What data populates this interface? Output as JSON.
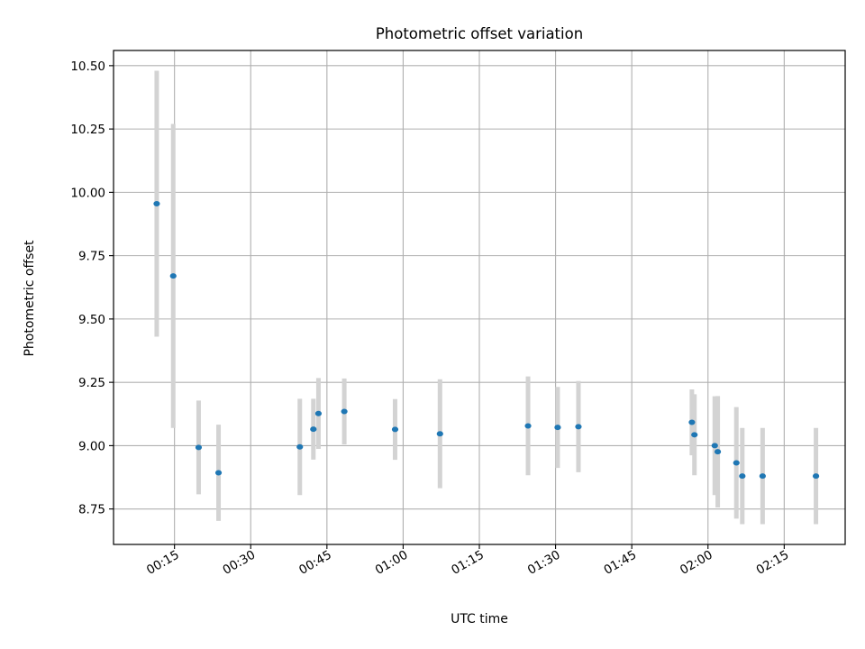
{
  "chart_data": {
    "type": "scatter",
    "title": "Photometric offset variation",
    "xlabel": "UTC time",
    "ylabel": "Photometric offset",
    "x_ticks": [
      "00:15",
      "00:30",
      "00:45",
      "01:00",
      "01:15",
      "01:30",
      "01:45",
      "02:00",
      "02:15"
    ],
    "y_ticks": [
      "8.75",
      "9.00",
      "9.25",
      "9.50",
      "9.75",
      "10.00",
      "10.25",
      "10.50"
    ],
    "xlim": [
      "00:03",
      "02:27"
    ],
    "ylim": [
      8.61,
      10.56
    ],
    "grid": true,
    "marker_color": "#1f77b4",
    "errorbar_color": "#d3d3d3",
    "points": [
      {
        "t": "00:11:30",
        "y": 9.955,
        "err": 0.525
      },
      {
        "t": "00:14:45",
        "y": 9.67,
        "err": 0.6
      },
      {
        "t": "00:19:45",
        "y": 8.993,
        "err": 0.185
      },
      {
        "t": "00:23:40",
        "y": 8.893,
        "err": 0.19
      },
      {
        "t": "00:39:40",
        "y": 8.995,
        "err": 0.19
      },
      {
        "t": "00:42:20",
        "y": 9.065,
        "err": 0.12
      },
      {
        "t": "00:43:20",
        "y": 9.127,
        "err": 0.14
      },
      {
        "t": "00:48:25",
        "y": 9.135,
        "err": 0.13
      },
      {
        "t": "00:58:25",
        "y": 9.064,
        "err": 0.12
      },
      {
        "t": "01:07:15",
        "y": 9.047,
        "err": 0.215
      },
      {
        "t": "01:24:35",
        "y": 9.078,
        "err": 0.195
      },
      {
        "t": "01:30:25",
        "y": 9.072,
        "err": 0.16
      },
      {
        "t": "01:34:30",
        "y": 9.075,
        "err": 0.18
      },
      {
        "t": "01:56:50",
        "y": 9.092,
        "err": 0.13
      },
      {
        "t": "01:57:20",
        "y": 9.043,
        "err": 0.16
      },
      {
        "t": "02:01:20",
        "y": 9.0,
        "err": 0.195
      },
      {
        "t": "02:01:55",
        "y": 8.976,
        "err": 0.22
      },
      {
        "t": "02:05:35",
        "y": 8.932,
        "err": 0.22
      },
      {
        "t": "02:06:45",
        "y": 8.88,
        "err": 0.19
      },
      {
        "t": "02:10:45",
        "y": 8.88,
        "err": 0.19
      },
      {
        "t": "02:21:15",
        "y": 8.88,
        "err": 0.19
      }
    ]
  }
}
